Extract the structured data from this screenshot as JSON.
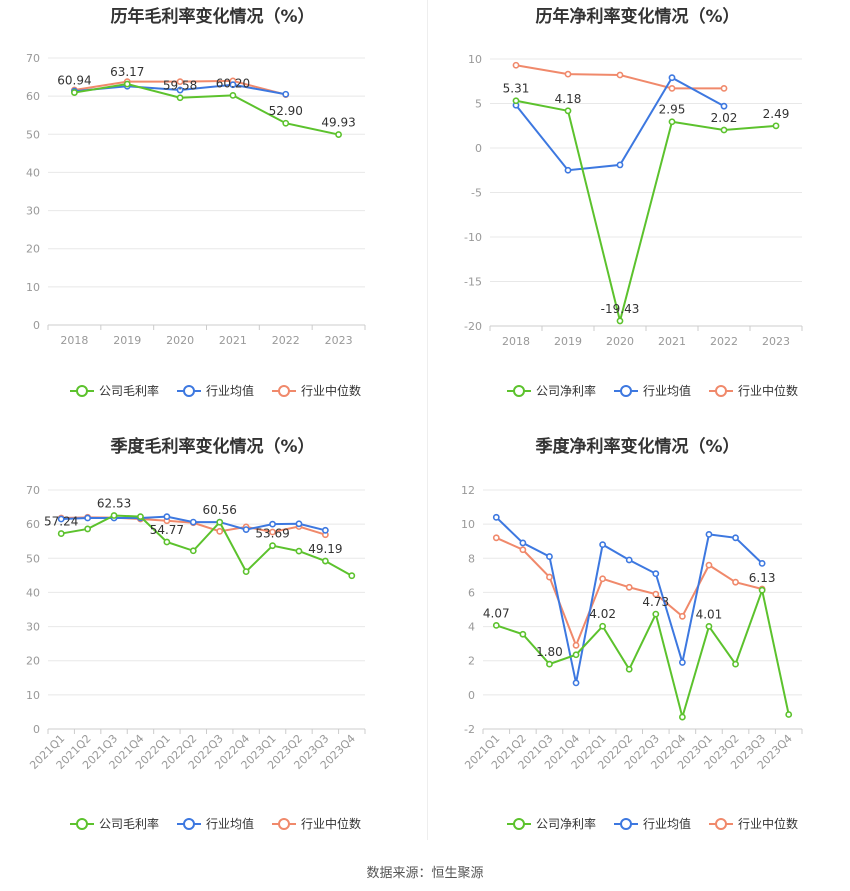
{
  "colors": {
    "company": "#5cc22d",
    "avg": "#3d78e0",
    "median": "#f0896b",
    "grid": "#e8e8e8",
    "axis": "#999999"
  },
  "legend": {
    "gross": "公司毛利率",
    "net": "公司净利率",
    "avg": "行业均值",
    "median": "行业中位数"
  },
  "footer": {
    "source": "数据来源：恒生聚源"
  },
  "chart_data": [
    {
      "id": "annual-gross",
      "type": "line",
      "title": "历年毛利率变化情况（%）",
      "categories": [
        "2018",
        "2019",
        "2020",
        "2021",
        "2022",
        "2023"
      ],
      "ylim": [
        0,
        70
      ],
      "yticks": [
        0,
        10,
        20,
        30,
        40,
        50,
        60,
        70
      ],
      "grid": true,
      "legend_position": "bottom",
      "series": [
        {
          "name": "公司毛利率",
          "key": "company",
          "values": [
            60.94,
            63.17,
            59.58,
            60.2,
            52.9,
            49.93
          ]
        },
        {
          "name": "行业均值",
          "key": "avg",
          "values": [
            61.3,
            62.6,
            61.6,
            63.0,
            60.5,
            null
          ]
        },
        {
          "name": "行业中位数",
          "key": "median",
          "values": [
            61.6,
            63.8,
            63.8,
            64.0,
            60.4,
            null
          ]
        }
      ],
      "labels": [
        {
          "index": 0,
          "text": "60.94"
        },
        {
          "index": 1,
          "text": "63.17"
        },
        {
          "index": 2,
          "text": "59.58"
        },
        {
          "index": 3,
          "text": "60.20"
        },
        {
          "index": 4,
          "text": "52.90"
        },
        {
          "index": 5,
          "text": "49.93"
        }
      ]
    },
    {
      "id": "annual-net",
      "type": "line",
      "title": "历年净利率变化情况（%）",
      "categories": [
        "2018",
        "2019",
        "2020",
        "2021",
        "2022",
        "2023"
      ],
      "ylim": [
        -20,
        10
      ],
      "yticks": [
        -20,
        -15,
        -10,
        -5,
        0,
        5,
        10
      ],
      "grid": true,
      "legend_position": "bottom",
      "series": [
        {
          "name": "公司净利率",
          "key": "company",
          "values": [
            5.31,
            4.18,
            -19.43,
            2.95,
            2.02,
            2.49
          ]
        },
        {
          "name": "行业均值",
          "key": "avg",
          "values": [
            4.8,
            -2.5,
            -1.9,
            7.9,
            4.7,
            null
          ]
        },
        {
          "name": "行业中位数",
          "key": "median",
          "values": [
            9.3,
            8.3,
            8.2,
            6.7,
            6.7,
            null
          ]
        }
      ],
      "labels": [
        {
          "index": 0,
          "text": "5.31"
        },
        {
          "index": 1,
          "text": "4.18"
        },
        {
          "index": 2,
          "text": "-19.43"
        },
        {
          "index": 3,
          "text": "2.95"
        },
        {
          "index": 4,
          "text": "2.02"
        },
        {
          "index": 5,
          "text": "2.49"
        }
      ]
    },
    {
      "id": "quarterly-gross",
      "type": "line",
      "title": "季度毛利率变化情况（%）",
      "categories": [
        "2021Q1",
        "2021Q2",
        "2021Q3",
        "2021Q4",
        "2022Q1",
        "2022Q2",
        "2022Q3",
        "2022Q4",
        "2023Q1",
        "2023Q2",
        "2023Q3",
        "2023Q4"
      ],
      "ylim": [
        0,
        70
      ],
      "yticks": [
        0,
        10,
        20,
        30,
        40,
        50,
        60,
        70
      ],
      "grid": true,
      "legend_position": "bottom",
      "series": [
        {
          "name": "公司毛利率",
          "key": "company",
          "values": [
            57.24,
            58.6,
            62.53,
            62.2,
            54.77,
            52.2,
            60.56,
            46.1,
            53.69,
            52.1,
            49.19,
            44.9
          ]
        },
        {
          "name": "行业均值",
          "key": "avg",
          "values": [
            61.5,
            61.8,
            61.8,
            61.8,
            62.2,
            60.6,
            60.6,
            58.4,
            60.0,
            60.1,
            58.2,
            null
          ]
        },
        {
          "name": "行业中位数",
          "key": "median",
          "values": [
            61.8,
            62.0,
            61.9,
            61.5,
            61.0,
            60.4,
            57.9,
            59.2,
            57.7,
            59.3,
            56.9,
            null
          ]
        }
      ],
      "labels": [
        {
          "index": 0,
          "text": "57.24"
        },
        {
          "index": 2,
          "text": "62.53"
        },
        {
          "index": 4,
          "text": "54.77"
        },
        {
          "index": 6,
          "text": "60.56"
        },
        {
          "index": 8,
          "text": "53.69"
        },
        {
          "index": 10,
          "text": "49.19"
        }
      ]
    },
    {
      "id": "quarterly-net",
      "type": "line",
      "title": "季度净利率变化情况（%）",
      "categories": [
        "2021Q1",
        "2021Q2",
        "2021Q3",
        "2021Q4",
        "2022Q1",
        "2022Q2",
        "2022Q3",
        "2022Q4",
        "2023Q1",
        "2023Q2",
        "2023Q3",
        "2023Q4"
      ],
      "ylim": [
        -2,
        12
      ],
      "yticks": [
        -2,
        0,
        2,
        4,
        6,
        8,
        10,
        12
      ],
      "grid": true,
      "legend_position": "bottom",
      "series": [
        {
          "name": "公司净利率",
          "key": "company",
          "values": [
            4.07,
            3.55,
            1.8,
            2.35,
            4.02,
            1.5,
            4.73,
            -1.3,
            4.01,
            1.8,
            6.13,
            -1.15
          ]
        },
        {
          "name": "行业均值",
          "key": "avg",
          "values": [
            10.4,
            8.9,
            8.1,
            0.7,
            8.8,
            7.9,
            7.1,
            1.9,
            9.4,
            9.2,
            7.7,
            null
          ]
        },
        {
          "name": "行业中位数",
          "key": "median",
          "values": [
            9.2,
            8.5,
            6.9,
            2.9,
            6.8,
            6.3,
            5.9,
            4.6,
            7.6,
            6.6,
            6.2,
            null
          ]
        }
      ],
      "labels": [
        {
          "index": 0,
          "text": "4.07"
        },
        {
          "index": 2,
          "text": "1.80"
        },
        {
          "index": 4,
          "text": "4.02"
        },
        {
          "index": 6,
          "text": "4.73"
        },
        {
          "index": 8,
          "text": "4.01"
        },
        {
          "index": 10,
          "text": "6.13"
        }
      ]
    }
  ]
}
